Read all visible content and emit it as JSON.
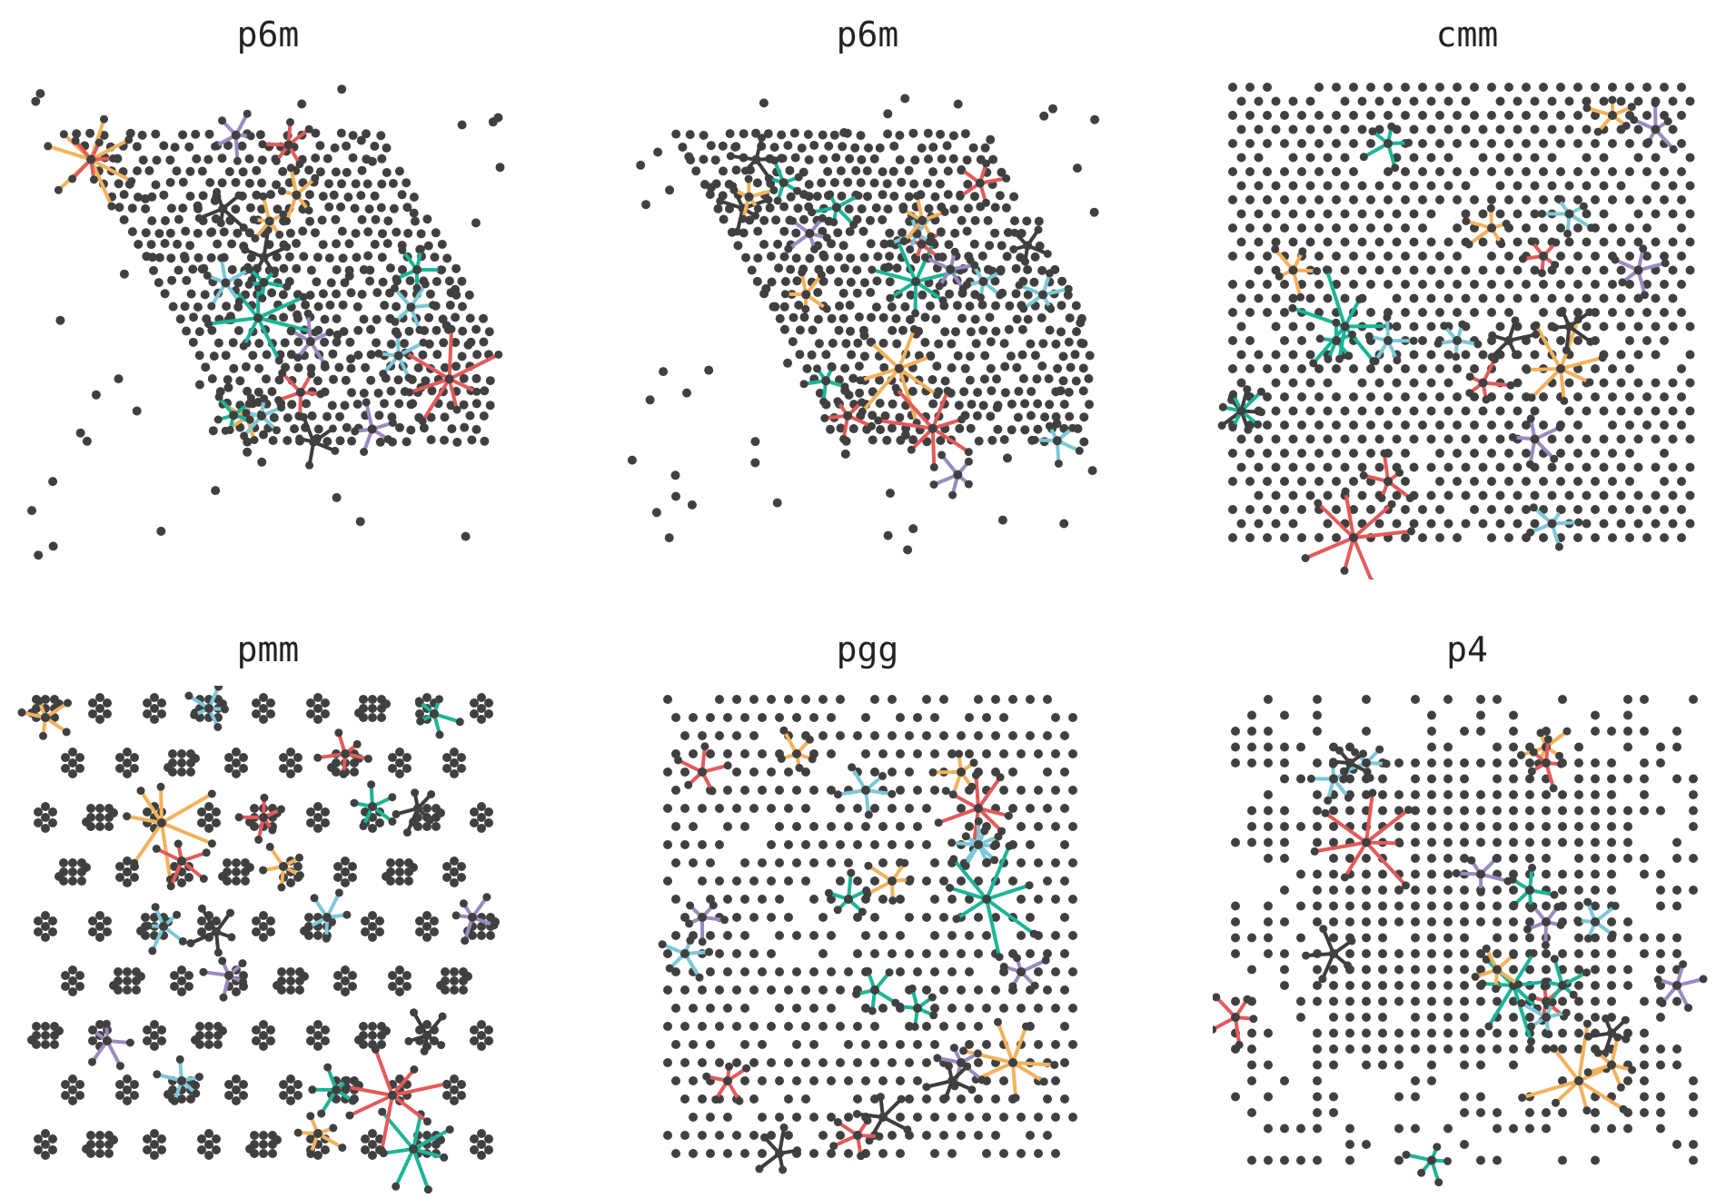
{
  "colors": {
    "dot": "#404040",
    "dark_star": "#3d3d3d",
    "orange": "#f2b25c",
    "teal": "#1bb597",
    "red": "#e35a5a",
    "lightblue": "#7cc8d8",
    "purple": "#9b8abf"
  },
  "panels": [
    {
      "title": "p6m",
      "lattice": "hexagonal-sheared",
      "seed": 11
    },
    {
      "title": "p6m",
      "lattice": "hexagonal-sheared",
      "seed": 23
    },
    {
      "title": "cmm",
      "lattice": "rhombic-dense",
      "seed": 37
    },
    {
      "title": "pmm",
      "lattice": "rectangular-clusters",
      "seed": 41
    },
    {
      "title": "pgg",
      "lattice": "rectangular-glide",
      "seed": 53
    },
    {
      "title": "p4",
      "lattice": "square-blocks",
      "seed": 67
    }
  ]
}
